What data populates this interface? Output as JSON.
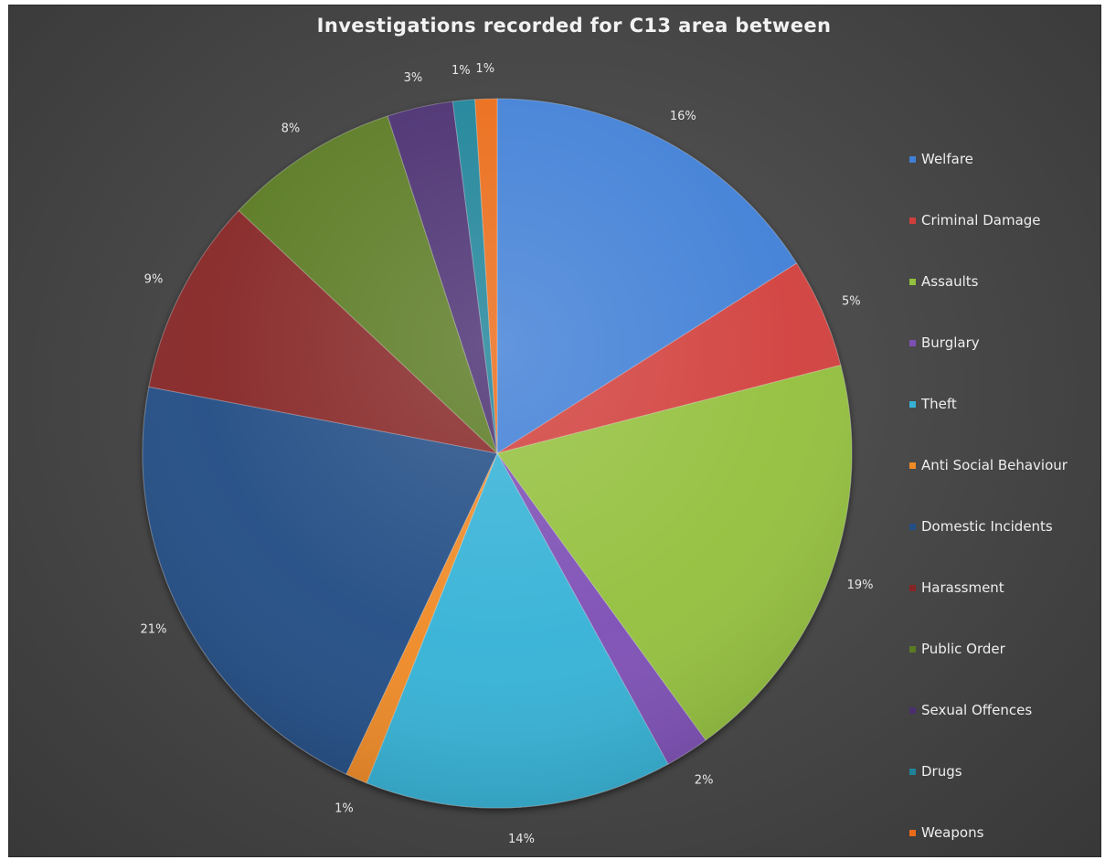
{
  "chart_data": {
    "type": "pie",
    "title": "Investigations recorded for C13 area between",
    "categories": [
      "Welfare",
      "Criminal Damage",
      "Assaults",
      "Burglary",
      "Theft",
      "Anti Social Behaviour",
      "Domestic Incidents",
      "Harassment",
      "Public Order",
      "Sexual Offences",
      "Drugs",
      "Weapons"
    ],
    "values": [
      16,
      5,
      19,
      2,
      14,
      1,
      21,
      9,
      8,
      3,
      1,
      1
    ],
    "labels": [
      "16%",
      "5%",
      "19%",
      "2%",
      "14%",
      "1%",
      "21%",
      "9%",
      "8%",
      "3%",
      "1%",
      "1%"
    ],
    "colors": [
      "#3f7fd6",
      "#d13f3c",
      "#93c03e",
      "#7d4fb5",
      "#36b2d6",
      "#ef8a25",
      "#234d85",
      "#862525",
      "#5a7a24",
      "#4a2e6f",
      "#1f8298",
      "#ea6b18"
    ],
    "legend_position": "right",
    "start_angle_degrees": 0,
    "direction": "clockwise"
  }
}
